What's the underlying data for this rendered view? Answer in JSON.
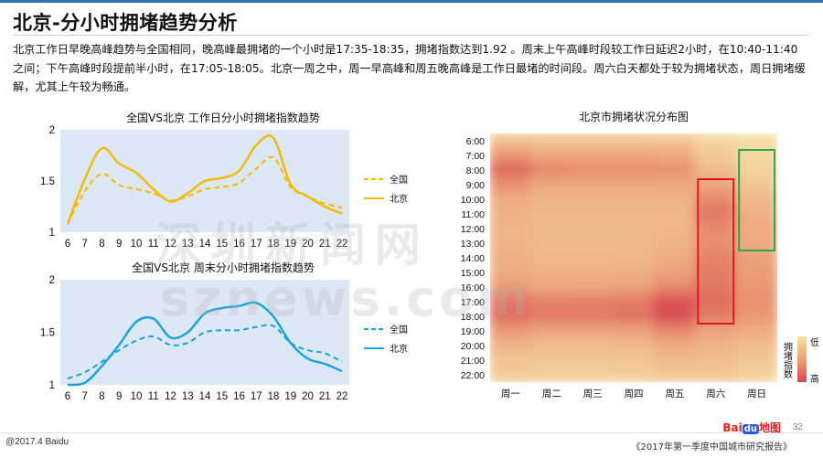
{
  "page": {
    "title": "北京-分小时拥堵趋势分析",
    "description": "北京工作日早晚高峰趋势与全国相同，晚高峰最拥堵的一个小时是17:35-18:35，拥堵指数达到1.92 。周末上午高峰时段较工作日延迟2小时，在10:40-11:40之间；下午高峰时段提前半小时，在17:05-18:05。北京一周之中，周一早高峰和周五晚高峰是工作日最堵的时间段。周六白天都处于较为拥堵状态，周日拥堵缓解，尤其上午较为畅通。",
    "watermark_line1": "深圳新闻网",
    "watermark_line2": "sznews.com",
    "footer_left": "@2017.4 Baidu",
    "footer_right": "《2017年第一季度中国城市研究报告》",
    "page_number": "32",
    "logo_text": "Bai",
    "logo_paw": "du",
    "logo_suffix": "地图"
  },
  "colors": {
    "plot_bg": "#dce8f5",
    "weekday_line": "#f5b800",
    "weekend_line": "#1aa3d6",
    "heat_low": "#f7e3a8",
    "heat_high": "#d6454f",
    "box_red": "#e01a1a",
    "box_green": "#2aa84a"
  },
  "chart_data": [
    {
      "type": "line",
      "title": "全国VS北京 工作日分小时拥堵指数趋势",
      "x": [
        6,
        7,
        8,
        9,
        10,
        11,
        12,
        13,
        14,
        15,
        16,
        17,
        18,
        19,
        20,
        21,
        22
      ],
      "ylim": [
        1,
        2
      ],
      "yticks": [
        "1",
        "1.5",
        "2"
      ],
      "series": [
        {
          "name": "全国",
          "style": "dashed",
          "values": [
            1.08,
            1.4,
            1.57,
            1.46,
            1.42,
            1.38,
            1.31,
            1.35,
            1.42,
            1.44,
            1.48,
            1.62,
            1.73,
            1.44,
            1.35,
            1.28,
            1.24
          ]
        },
        {
          "name": "北京",
          "style": "solid",
          "values": [
            1.08,
            1.52,
            1.82,
            1.67,
            1.58,
            1.42,
            1.3,
            1.38,
            1.5,
            1.53,
            1.6,
            1.85,
            1.92,
            1.47,
            1.35,
            1.25,
            1.18
          ]
        }
      ]
    },
    {
      "type": "line",
      "title": "全国VS北京 周末分小时拥堵指数趋势",
      "x": [
        6,
        7,
        8,
        9,
        10,
        11,
        12,
        13,
        14,
        15,
        16,
        17,
        18,
        19,
        20,
        21,
        22
      ],
      "ylim": [
        1,
        2
      ],
      "yticks": [
        "1",
        "1.5",
        "2"
      ],
      "series": [
        {
          "name": "全国",
          "style": "dashed",
          "values": [
            1.06,
            1.12,
            1.22,
            1.33,
            1.42,
            1.46,
            1.38,
            1.4,
            1.5,
            1.52,
            1.52,
            1.55,
            1.56,
            1.4,
            1.33,
            1.3,
            1.22
          ]
        },
        {
          "name": "北京",
          "style": "solid",
          "values": [
            1.0,
            1.02,
            1.18,
            1.38,
            1.6,
            1.63,
            1.45,
            1.5,
            1.68,
            1.73,
            1.75,
            1.78,
            1.65,
            1.4,
            1.25,
            1.2,
            1.13
          ]
        }
      ]
    },
    {
      "type": "heatmap",
      "title": "北京市拥堵状况分布图",
      "yticks": [
        "6:00",
        "7:00",
        "8:00",
        "9:00",
        "10:00",
        "11:00",
        "12:00",
        "13:00",
        "14:00",
        "15:00",
        "16:00",
        "17:00",
        "18:00",
        "19:00",
        "20:00",
        "21:00",
        "22:00"
      ],
      "xticks": [
        "周一",
        "周二",
        "周三",
        "周四",
        "周五",
        "周六",
        "周日"
      ],
      "legend": {
        "label": "拥堵指数",
        "low": "低",
        "high": "高"
      },
      "values": [
        [
          0.25,
          0.22,
          0.22,
          0.22,
          0.22,
          0.1,
          0.05
        ],
        [
          0.55,
          0.45,
          0.45,
          0.45,
          0.42,
          0.18,
          0.08
        ],
        [
          0.8,
          0.62,
          0.6,
          0.6,
          0.58,
          0.3,
          0.12
        ],
        [
          0.6,
          0.45,
          0.45,
          0.45,
          0.45,
          0.45,
          0.2
        ],
        [
          0.42,
          0.35,
          0.35,
          0.35,
          0.35,
          0.62,
          0.3
        ],
        [
          0.38,
          0.32,
          0.32,
          0.32,
          0.32,
          0.72,
          0.38
        ],
        [
          0.35,
          0.3,
          0.3,
          0.3,
          0.32,
          0.62,
          0.42
        ],
        [
          0.35,
          0.3,
          0.3,
          0.3,
          0.35,
          0.58,
          0.42
        ],
        [
          0.38,
          0.32,
          0.32,
          0.33,
          0.4,
          0.66,
          0.48
        ],
        [
          0.42,
          0.36,
          0.36,
          0.38,
          0.48,
          0.7,
          0.52
        ],
        [
          0.52,
          0.45,
          0.45,
          0.48,
          0.62,
          0.72,
          0.55
        ],
        [
          0.72,
          0.65,
          0.66,
          0.7,
          0.92,
          0.78,
          0.58
        ],
        [
          0.78,
          0.72,
          0.72,
          0.75,
          0.95,
          0.7,
          0.55
        ],
        [
          0.55,
          0.48,
          0.48,
          0.5,
          0.65,
          0.48,
          0.42
        ],
        [
          0.35,
          0.3,
          0.3,
          0.32,
          0.42,
          0.35,
          0.3
        ],
        [
          0.25,
          0.22,
          0.22,
          0.22,
          0.3,
          0.28,
          0.22
        ],
        [
          0.18,
          0.15,
          0.15,
          0.16,
          0.22,
          0.22,
          0.15
        ]
      ],
      "highlights": [
        {
          "color": "red",
          "col": "周六",
          "from": "9:00",
          "to": "18:00"
        },
        {
          "color": "green",
          "col": "周日",
          "from": "7:00",
          "to": "13:00"
        }
      ]
    }
  ]
}
